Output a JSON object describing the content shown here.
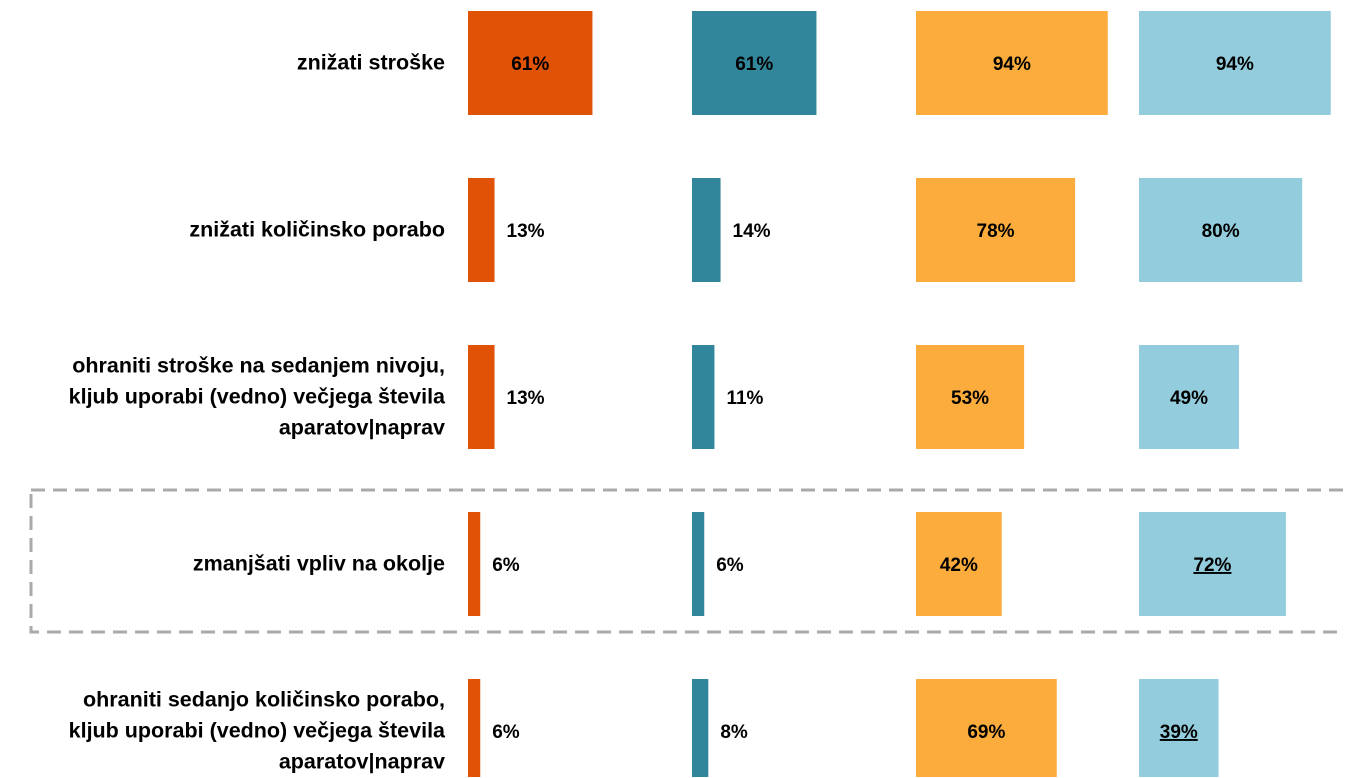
{
  "chart_data": {
    "type": "bar",
    "orientation": "horizontal",
    "categories": [
      "znižati stroške",
      "znižati količinsko porabo",
      "ohraniti stroške na sedanjem nivoju, kljub uporabi (vedno) večjega števila aparatov|naprav",
      "zmanjšati vpliv na okolje",
      "ohraniti sedanjo količinsko porabo, kljub uporabi (vedno) večjega števila aparatov|naprav"
    ],
    "xlim": [
      0,
      100
    ],
    "highlight_category": 3,
    "series": [
      {
        "color": "#e05206",
        "values": [
          61,
          13,
          13,
          6,
          6
        ],
        "value_labels": [
          "61%",
          "13%",
          "13%",
          "6%",
          "6%"
        ]
      },
      {
        "color": "#31869b",
        "values": [
          61,
          14,
          11,
          6,
          8
        ],
        "value_labels": [
          "61%",
          "14%",
          "11%",
          "6%",
          "8%"
        ]
      },
      {
        "color": "#fbac3c",
        "values": [
          94,
          78,
          53,
          42,
          69
        ],
        "value_labels": [
          "94%",
          "78%",
          "53%",
          "42%",
          "69%"
        ]
      },
      {
        "color": "#93cddd",
        "values": [
          94,
          80,
          49,
          72,
          39
        ],
        "value_labels": [
          "94%",
          "80%",
          "49%",
          "72%",
          "39%"
        ],
        "underlined": [
          false,
          false,
          false,
          true,
          true
        ]
      }
    ]
  }
}
